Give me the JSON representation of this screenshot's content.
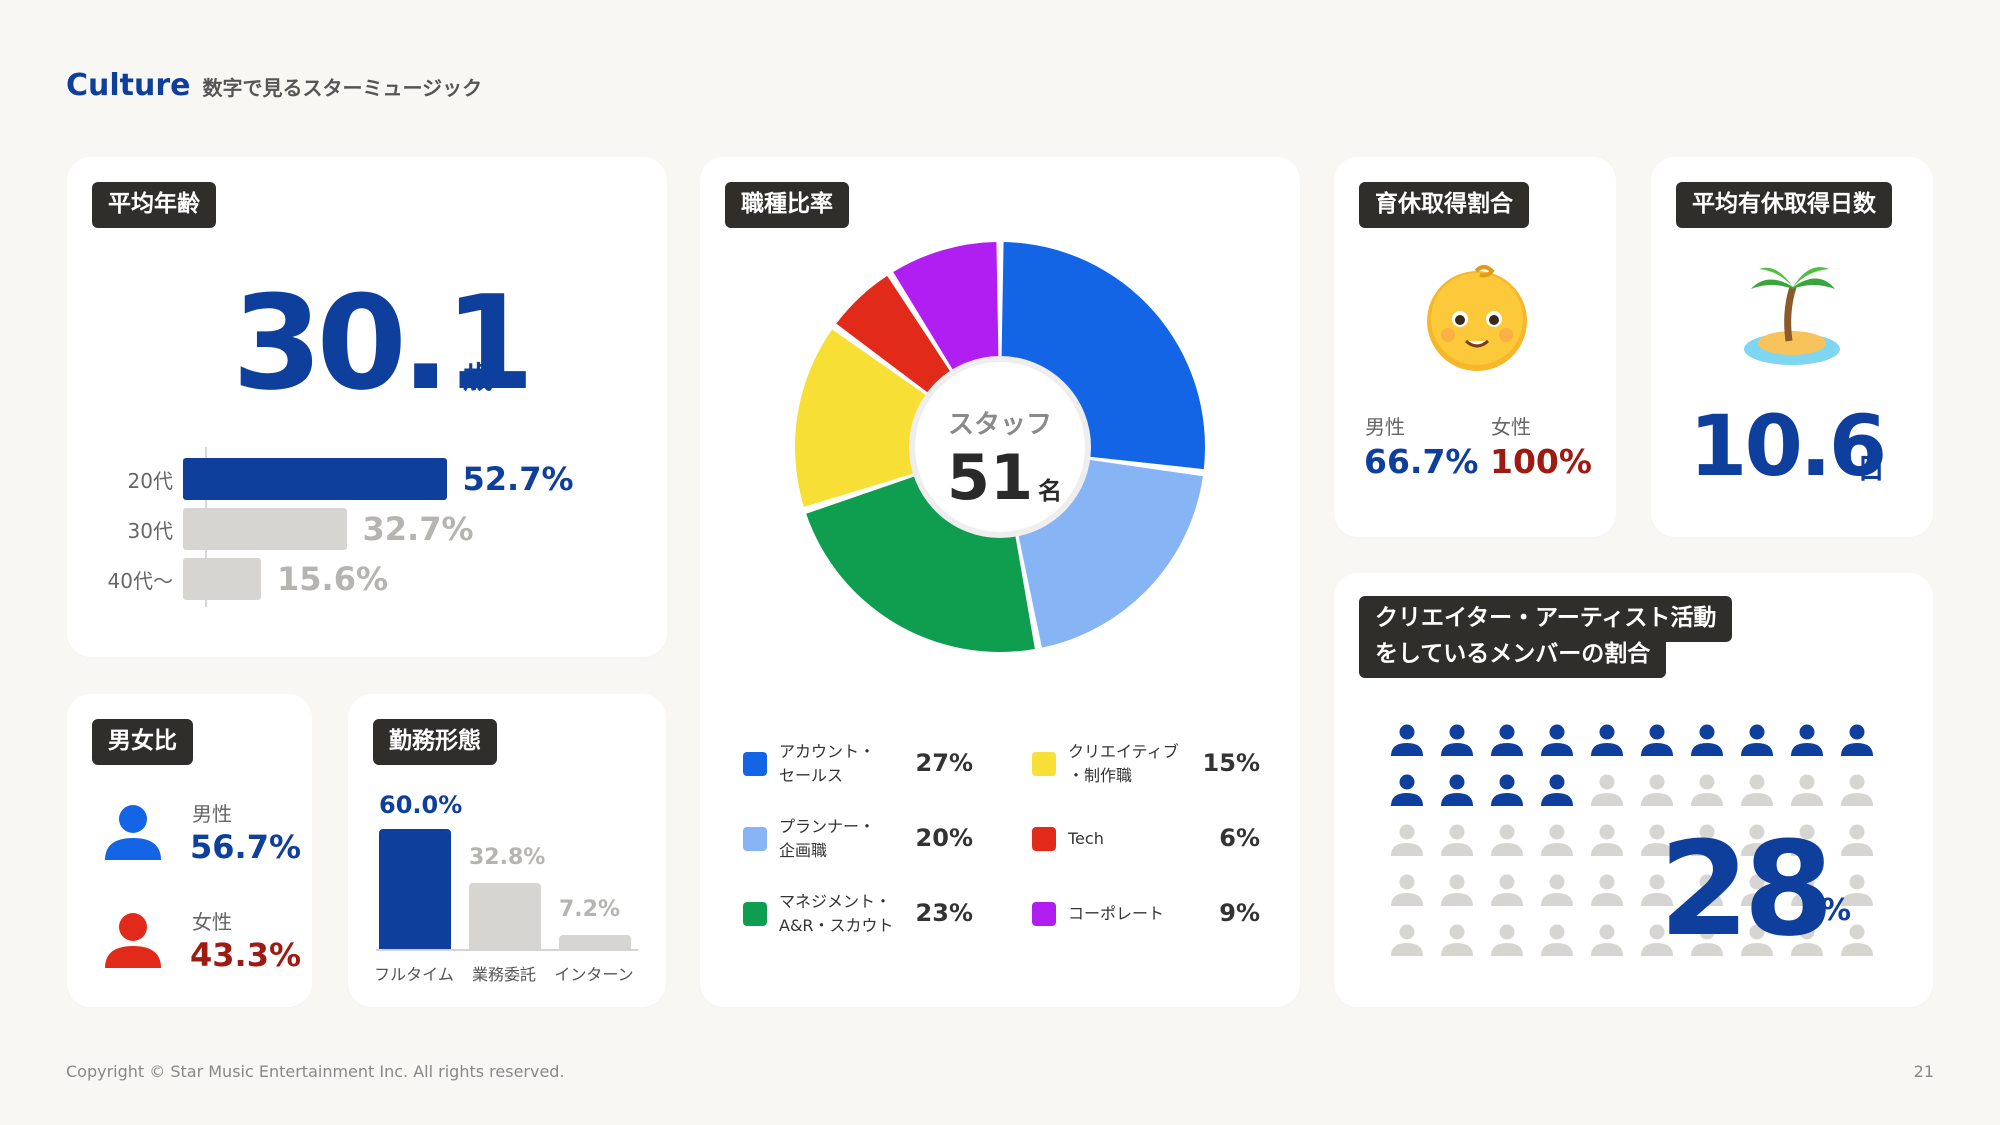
{
  "header": {
    "brand": "Culture",
    "subtitle": "数字で見るスターミュージック"
  },
  "colors": {
    "brand_blue": "#0e3f9c",
    "gray_bar": "#d6d5d1",
    "male_blue": "#1464e6",
    "female_red": "#e22a1a",
    "female_text": "#9e1a12"
  },
  "average_age": {
    "tag": "平均年齢",
    "value": "30.1",
    "unit": "歳",
    "rows": [
      {
        "label": "20代",
        "pct_text": "52.7%",
        "pct": 52.7
      },
      {
        "label": "30代",
        "pct_text": "32.7%",
        "pct": 32.7
      },
      {
        "label": "40代〜",
        "pct_text": "15.6%",
        "pct": 15.6
      }
    ]
  },
  "gender": {
    "tag": "男女比",
    "male": {
      "label": "男性",
      "value": "56.7%"
    },
    "female": {
      "label": "女性",
      "value": "43.3%"
    }
  },
  "work_style": {
    "tag": "勤務形態",
    "bars": [
      {
        "label": "フルタイム",
        "value_text": "60.0%",
        "value": 60.0
      },
      {
        "label": "業務委託",
        "value_text": "32.8%",
        "value": 32.8
      },
      {
        "label": "インターン",
        "value_text": "7.2%",
        "value": 7.2
      }
    ]
  },
  "job_ratio": {
    "tag": "職種比率",
    "center_label": "スタッフ",
    "center_value": "51",
    "center_unit": "名",
    "segments": [
      {
        "label": "アカウント・\nセールス",
        "pct_text": "27%",
        "value": 27,
        "color": "#1464e6"
      },
      {
        "label": "プランナー・\n企画職",
        "pct_text": "20%",
        "value": 20,
        "color": "#86b4f5"
      },
      {
        "label": "マネジメント・\nA&R・スカウト",
        "pct_text": "23%",
        "value": 23,
        "color": "#0f9d4f"
      },
      {
        "label": "クリエイティブ\n・制作職",
        "pct_text": "15%",
        "value": 15,
        "color": "#f7df36"
      },
      {
        "label": "Tech",
        "pct_text": "6%",
        "value": 6,
        "color": "#e22a1a"
      },
      {
        "label": "コーポレート",
        "pct_text": "9%",
        "value": 9,
        "color": "#b01ef2"
      }
    ]
  },
  "childcare_leave": {
    "tag": "育休取得割合",
    "icon": "baby-emoji-icon",
    "male": {
      "label": "男性",
      "value": "66.7%"
    },
    "female": {
      "label": "女性",
      "value": "100%"
    }
  },
  "paid_leave": {
    "tag": "平均有休取得日数",
    "icon": "island-emoji-icon",
    "value": "10.6",
    "unit": "日"
  },
  "creator_ratio": {
    "tag_line1": "クリエイター・アーティスト活動",
    "tag_line2": "をしているメンバーの割合",
    "value": "28",
    "unit": "%",
    "highlighted": 14,
    "total": 50
  },
  "footer": {
    "copyright": "Copyright © Star Music Entertainment Inc. All rights reserved.",
    "page": "21"
  }
}
